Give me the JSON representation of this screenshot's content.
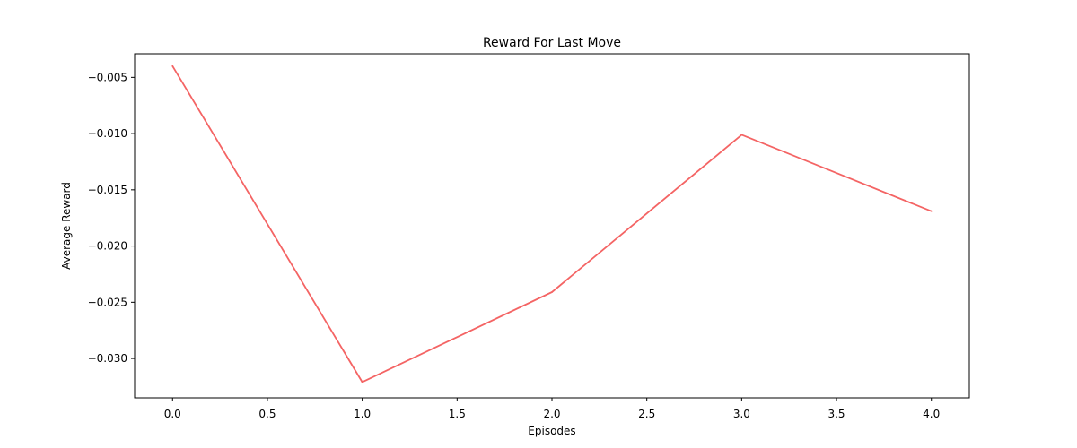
{
  "chart_data": {
    "type": "line",
    "title": "Reward For Last Move",
    "xlabel": "Episodes",
    "ylabel": "Average Reward",
    "x": [
      0.0,
      1.0,
      2.0,
      3.0,
      4.0
    ],
    "series": [
      {
        "values": [
          -0.004,
          -0.0321,
          -0.0241,
          -0.0101,
          -0.0169
        ],
        "color": "#f46464"
      }
    ],
    "xlim": [
      -0.2,
      4.2
    ],
    "ylim": [
      -0.0335,
      -0.0029
    ],
    "xticks": [
      0.0,
      0.5,
      1.0,
      1.5,
      2.0,
      2.5,
      3.0,
      3.5,
      4.0
    ],
    "xtick_labels": [
      "0.0",
      "0.5",
      "1.0",
      "1.5",
      "2.0",
      "2.5",
      "3.0",
      "3.5",
      "4.0"
    ],
    "yticks": [
      -0.005,
      -0.01,
      -0.015,
      -0.02,
      -0.025,
      -0.03
    ],
    "ytick_labels": [
      "−0.005",
      "−0.010",
      "−0.015",
      "−0.020",
      "−0.025",
      "−0.030"
    ],
    "grid": false,
    "legend": false
  }
}
